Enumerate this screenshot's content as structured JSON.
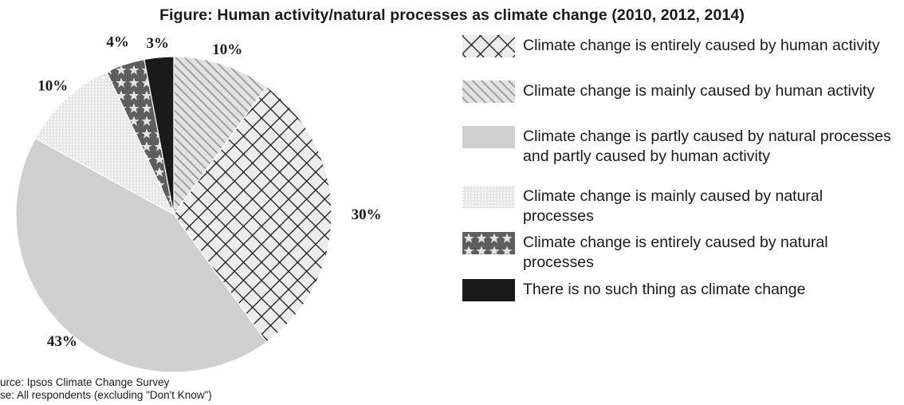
{
  "chart_data": {
    "type": "pie",
    "title": "Figure: Human activity/natural processes as climate change (2010, 2012, 2014)",
    "slices": [
      {
        "label": "Climate change is mainly caused by human activity",
        "value": 10,
        "value_label": "10%",
        "pattern": "diagonal"
      },
      {
        "label": "Climate change is entirely caused by human activity",
        "value": 30,
        "value_label": "30%",
        "pattern": "crosshatch"
      },
      {
        "label": "Climate change is partly caused by natural processes and partly caused by human activity",
        "value": 43,
        "value_label": "43%",
        "pattern": "solid-light"
      },
      {
        "label": "Climate change is mainly caused by natural processes",
        "value": 10,
        "value_label": "10%",
        "pattern": "grid"
      },
      {
        "label": "Climate change is entirely caused by natural processes",
        "value": 4,
        "value_label": "4%",
        "pattern": "stars"
      },
      {
        "label": "There is no such thing as climate change",
        "value": 3,
        "value_label": "3%",
        "pattern": "solid-dark"
      }
    ],
    "legend": [
      {
        "label": "Climate change is entirely caused by human activity",
        "pattern": "crosshatch"
      },
      {
        "label": "Climate change is mainly caused by human activity",
        "pattern": "diagonal"
      },
      {
        "label": "Climate change is partly caused by natural processes and partly caused by human activity",
        "pattern": "solid-light"
      },
      {
        "label": "Climate change is mainly caused by natural processes",
        "pattern": "grid"
      },
      {
        "label": "Climate change is entirely caused by natural processes",
        "pattern": "stars"
      },
      {
        "label": "There is no such thing as climate change",
        "pattern": "solid-dark"
      }
    ],
    "legend_position": "right"
  },
  "source": {
    "source_line": "urce: Ipsos Climate Change Survey",
    "base_line": "se: All respondents (excluding \"Don't Know\")"
  },
  "colors": {
    "ink": "#1a1a1a",
    "light_gray": "#cfcfcf",
    "pattern_bg": "#e9e9e9"
  }
}
